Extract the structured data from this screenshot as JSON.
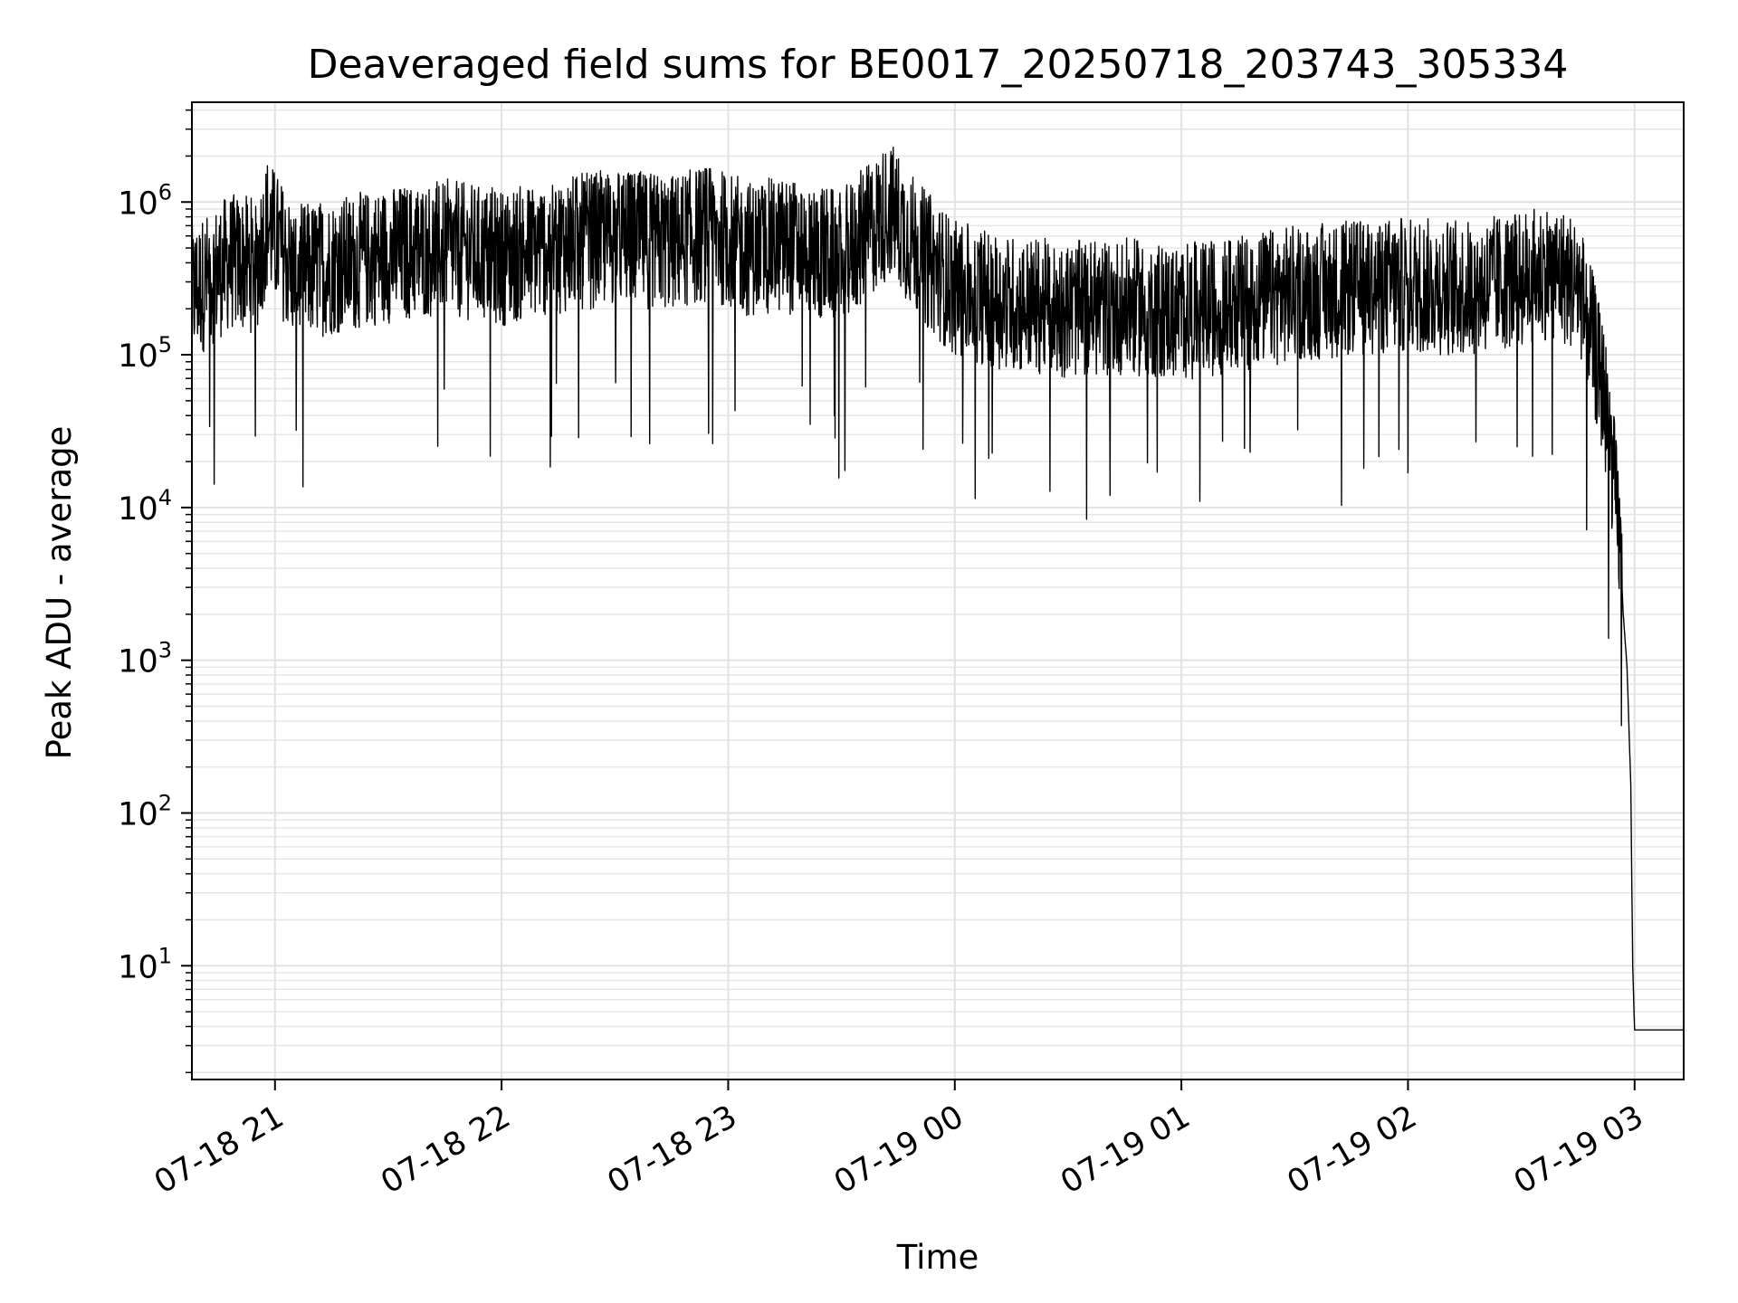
{
  "chart_data": {
    "type": "line",
    "title": "Deaveraged field sums for BE0017_20250718_203743_305334",
    "xlabel": "Time",
    "ylabel": "Peak ADU - average",
    "y_scale": "log",
    "xlim": [
      "2025-07-18T20:38",
      "2025-07-19T03:13"
    ],
    "ylim": [
      1.8,
      4500000
    ],
    "grid": true,
    "line_color": "#000000",
    "x_ticks": [
      {
        "t": "2025-07-18T21:00",
        "label": "07-18 21"
      },
      {
        "t": "2025-07-18T22:00",
        "label": "07-18 22"
      },
      {
        "t": "2025-07-18T23:00",
        "label": "07-18 23"
      },
      {
        "t": "2025-07-19T00:00",
        "label": "07-19 00"
      },
      {
        "t": "2025-07-19T01:00",
        "label": "07-19 01"
      },
      {
        "t": "2025-07-19T02:00",
        "label": "07-19 02"
      },
      {
        "t": "2025-07-19T03:00",
        "label": "07-19 03"
      }
    ],
    "y_ticks": [
      {
        "value": 10,
        "base": "10",
        "exp": "1"
      },
      {
        "value": 100,
        "base": "10",
        "exp": "2"
      },
      {
        "value": 1000,
        "base": "10",
        "exp": "3"
      },
      {
        "value": 10000,
        "base": "10",
        "exp": "4"
      },
      {
        "value": 100000,
        "base": "10",
        "exp": "5"
      },
      {
        "value": 1000000,
        "base": "10",
        "exp": "6"
      }
    ],
    "series": [
      {
        "x": [
          "2025-07-18T20:38",
          "2025-07-18T20:48",
          "2025-07-18T20:55",
          "2025-07-18T20:58",
          "2025-07-18T21:05",
          "2025-07-18T21:15",
          "2025-07-18T21:30",
          "2025-07-18T21:45",
          "2025-07-18T22:00",
          "2025-07-18T22:15",
          "2025-07-18T22:30",
          "2025-07-18T22:45",
          "2025-07-18T22:55",
          "2025-07-18T23:05",
          "2025-07-18T23:15",
          "2025-07-18T23:30",
          "2025-07-18T23:43",
          "2025-07-18T23:50",
          "2025-07-19T00:00",
          "2025-07-19T00:15",
          "2025-07-19T00:30",
          "2025-07-19T00:45",
          "2025-07-19T01:00",
          "2025-07-19T01:15",
          "2025-07-19T01:30",
          "2025-07-19T01:45",
          "2025-07-19T02:00",
          "2025-07-19T02:15",
          "2025-07-19T02:30",
          "2025-07-19T02:38",
          "2025-07-19T02:45",
          "2025-07-19T02:48",
          "2025-07-19T02:50",
          "2025-07-19T02:52",
          "2025-07-19T02:54",
          "2025-07-19T02:56",
          "2025-07-19T02:57",
          "2025-07-19T02:58",
          "2025-07-19T02:59",
          "2025-07-19T02:59:30",
          "2025-07-19T03:00",
          "2025-07-19T03:05",
          "2025-07-19T03:13"
        ],
        "y": [
          280000,
          450000,
          430000,
          800000,
          380000,
          420000,
          500000,
          560000,
          480000,
          580000,
          650000,
          600000,
          700000,
          550000,
          580000,
          480000,
          1000000,
          550000,
          300000,
          240000,
          220000,
          230000,
          210000,
          240000,
          280000,
          300000,
          320000,
          300000,
          350000,
          400000,
          320000,
          180000,
          100000,
          60000,
          22000,
          7000,
          2000,
          900,
          150,
          10,
          3.8,
          3.8,
          3.8
        ]
      }
    ]
  }
}
